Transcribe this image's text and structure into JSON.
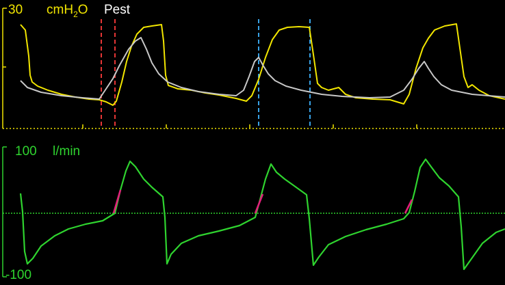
{
  "chart_data": [
    {
      "type": "line",
      "ylabel_value": "30",
      "yunit": "cmH2O",
      "series_label": "Pest",
      "colors": {
        "primary": "#f2e600",
        "secondary": "#c8c8c8",
        "axis": "#f2e600",
        "mark_red": "#ff3b3b",
        "mark_blue": "#3fb4ff"
      },
      "ylim": [
        0,
        30
      ],
      "xlim": [
        0,
        738
      ],
      "series": [
        {
          "color": "#f2e600",
          "points": [
            [
              30,
              36
            ],
            [
              37,
              44
            ],
            [
              42,
              82
            ],
            [
              44,
              110
            ],
            [
              47,
              120
            ],
            [
              55,
              126
            ],
            [
              70,
              132
            ],
            [
              90,
              138
            ],
            [
              110,
              142
            ],
            [
              130,
              145
            ],
            [
              145,
              146
            ],
            [
              155,
              149
            ],
            [
              165,
              154
            ],
            [
              170,
              148
            ],
            [
              178,
              120
            ],
            [
              185,
              90
            ],
            [
              192,
              68
            ],
            [
              200,
              50
            ],
            [
              210,
              40
            ],
            [
              222,
              38
            ],
            [
              236,
              36
            ],
            [
              239,
              60
            ],
            [
              242,
              110
            ],
            [
              246,
              125
            ],
            [
              260,
              130
            ],
            [
              280,
              132
            ],
            [
              300,
              136
            ],
            [
              320,
              139
            ],
            [
              345,
              144
            ],
            [
              360,
              148
            ],
            [
              368,
              140
            ],
            [
              378,
              116
            ],
            [
              388,
              84
            ],
            [
              398,
              58
            ],
            [
              408,
              44
            ],
            [
              420,
              40
            ],
            [
              437,
              39
            ],
            [
              452,
              40
            ],
            [
              458,
              80
            ],
            [
              464,
              122
            ],
            [
              470,
              128
            ],
            [
              480,
              132
            ],
            [
              495,
              128
            ],
            [
              505,
              138
            ],
            [
              520,
              143
            ],
            [
              545,
              145
            ],
            [
              570,
              146
            ],
            [
              590,
              152
            ],
            [
              598,
              138
            ],
            [
              608,
              100
            ],
            [
              618,
              70
            ],
            [
              626,
              56
            ],
            [
              635,
              44
            ],
            [
              650,
              38
            ],
            [
              667,
              35
            ],
            [
              672,
              70
            ],
            [
              678,
              112
            ],
            [
              684,
              128
            ],
            [
              690,
              124
            ],
            [
              700,
              132
            ],
            [
              715,
              140
            ],
            [
              738,
              145
            ]
          ]
        },
        {
          "color": "#c8c8c8",
          "points": [
            [
              30,
              118
            ],
            [
              40,
              128
            ],
            [
              60,
              135
            ],
            [
              90,
              140
            ],
            [
              120,
              143
            ],
            [
              145,
              145
            ],
            [
              155,
              130
            ],
            [
              165,
              115
            ],
            [
              175,
              95
            ],
            [
              188,
              72
            ],
            [
              198,
              60
            ],
            [
              206,
              55
            ],
            [
              214,
              72
            ],
            [
              222,
              92
            ],
            [
              232,
              108
            ],
            [
              245,
              120
            ],
            [
              265,
              128
            ],
            [
              290,
              134
            ],
            [
              320,
              138
            ],
            [
              345,
              140
            ],
            [
              356,
              132
            ],
            [
              364,
              112
            ],
            [
              372,
              90
            ],
            [
              378,
              84
            ],
            [
              384,
              95
            ],
            [
              392,
              108
            ],
            [
              402,
              118
            ],
            [
              418,
              126
            ],
            [
              440,
              132
            ],
            [
              470,
              138
            ],
            [
              500,
              141
            ],
            [
              540,
              143
            ],
            [
              570,
              142
            ],
            [
              590,
              132
            ],
            [
              602,
              116
            ],
            [
              612,
              100
            ],
            [
              620,
              90
            ],
            [
              626,
              100
            ],
            [
              634,
              112
            ],
            [
              645,
              124
            ],
            [
              660,
              132
            ],
            [
              690,
              138
            ],
            [
              738,
              142
            ]
          ]
        }
      ],
      "markers": [
        {
          "x": 148,
          "color": "#ff3b3b"
        },
        {
          "x": 168,
          "color": "#ff3b3b"
        },
        {
          "x": 378,
          "color": "#3fb4ff"
        },
        {
          "x": 453,
          "color": "#3fb4ff"
        }
      ]
    },
    {
      "type": "line",
      "ylabel_top": "100",
      "yunit": "l/min",
      "ylabel_bottom": "-100",
      "ylim": [
        -100,
        100
      ],
      "colors": {
        "primary": "#2fd42f",
        "axis": "#2fd42f",
        "trigger": "#e0207a"
      },
      "series": [
        {
          "color": "#2fd42f",
          "points": [
            [
              30,
              283
            ],
            [
              33,
              310
            ],
            [
              36,
              368
            ],
            [
              40,
              386
            ],
            [
              48,
              378
            ],
            [
              60,
              360
            ],
            [
              80,
              345
            ],
            [
              100,
              335
            ],
            [
              125,
              328
            ],
            [
              150,
              323
            ],
            [
              168,
              312
            ],
            [
              176,
              278
            ],
            [
              184,
              250
            ],
            [
              190,
              236
            ],
            [
              198,
              244
            ],
            [
              210,
              262
            ],
            [
              222,
              274
            ],
            [
              238,
              288
            ],
            [
              241,
              318
            ],
            [
              244,
              386
            ],
            [
              250,
              372
            ],
            [
              265,
              356
            ],
            [
              290,
              345
            ],
            [
              320,
              338
            ],
            [
              350,
              330
            ],
            [
              373,
              318
            ],
            [
              380,
              292
            ],
            [
              388,
              262
            ],
            [
              396,
              240
            ],
            [
              404,
              252
            ],
            [
              416,
              262
            ],
            [
              430,
              272
            ],
            [
              448,
              285
            ],
            [
              452,
              320
            ],
            [
              458,
              388
            ],
            [
              466,
              376
            ],
            [
              480,
              358
            ],
            [
              505,
              346
            ],
            [
              535,
              336
            ],
            [
              565,
              328
            ],
            [
              590,
              320
            ],
            [
              598,
              311
            ],
            [
              606,
              280
            ],
            [
              614,
              245
            ],
            [
              622,
              233
            ],
            [
              630,
              244
            ],
            [
              642,
              260
            ],
            [
              656,
              272
            ],
            [
              670,
              288
            ],
            [
              674,
              332
            ],
            [
              678,
              394
            ],
            [
              688,
              380
            ],
            [
              705,
              356
            ],
            [
              725,
              340
            ],
            [
              738,
              335
            ]
          ]
        },
        {
          "color": "#e0207a",
          "segments": [
            [
              [
                166,
                312
              ],
              [
                176,
                278
              ]
            ],
            [
              [
                373,
                312
              ],
              [
                384,
                284
              ]
            ],
            [
              [
                592,
                312
              ],
              [
                602,
                292
              ]
            ]
          ]
        }
      ]
    }
  ]
}
